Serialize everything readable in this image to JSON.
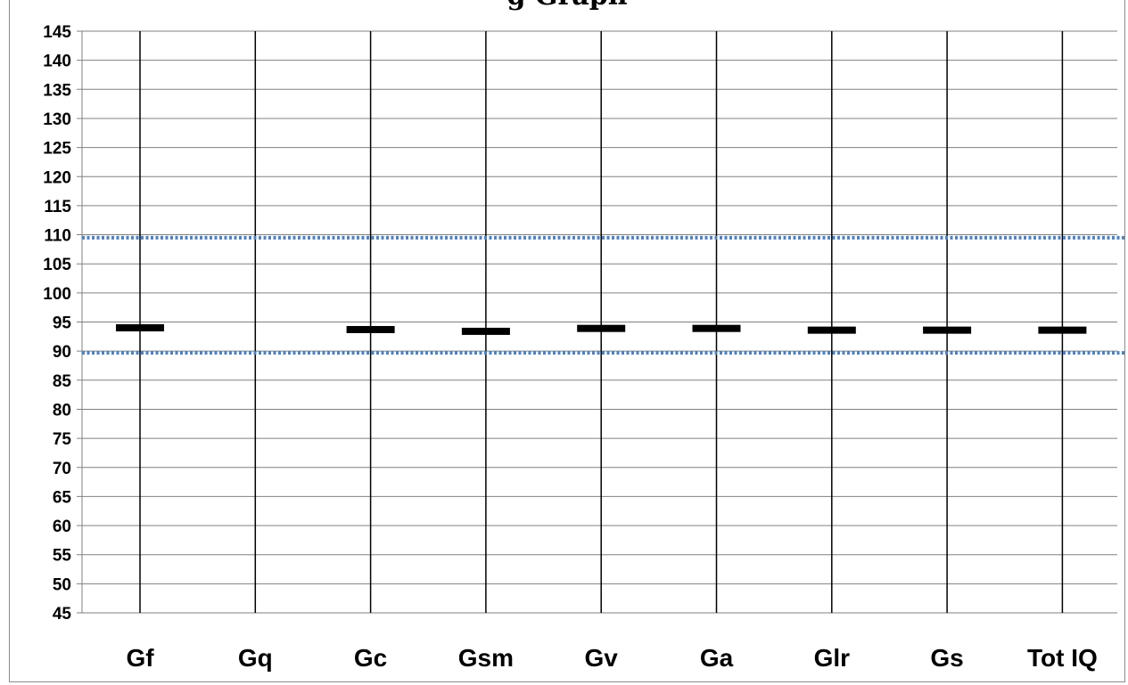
{
  "chart_data": {
    "type": "scatter",
    "title": "g Graph",
    "categories": [
      "Gf",
      "Gq",
      "Gc",
      "Gsm",
      "Gv",
      "Ga",
      "Glr",
      "Gs",
      "Tot IQ"
    ],
    "series": [
      {
        "values": [
          94,
          null,
          93.7,
          93.4,
          93.9,
          93.9,
          93.6,
          93.6,
          93.6
        ],
        "marker": "horizontal-bar",
        "color": "#000000"
      }
    ],
    "reference_lines": [
      {
        "y": 109.5,
        "style": "dotted",
        "color": "#4f81bd"
      },
      {
        "y": 89.7,
        "style": "dotted",
        "color": "#4f81bd"
      }
    ],
    "ylim": [
      45,
      145
    ],
    "ytick_step": 5,
    "xlabel": "",
    "ylabel": "",
    "grid": {
      "horizontal": true,
      "vertical": true
    },
    "colors": {
      "gridline": "#808080",
      "category_line": "#000000",
      "reference": "#4f81bd",
      "marker": "#000000"
    }
  }
}
